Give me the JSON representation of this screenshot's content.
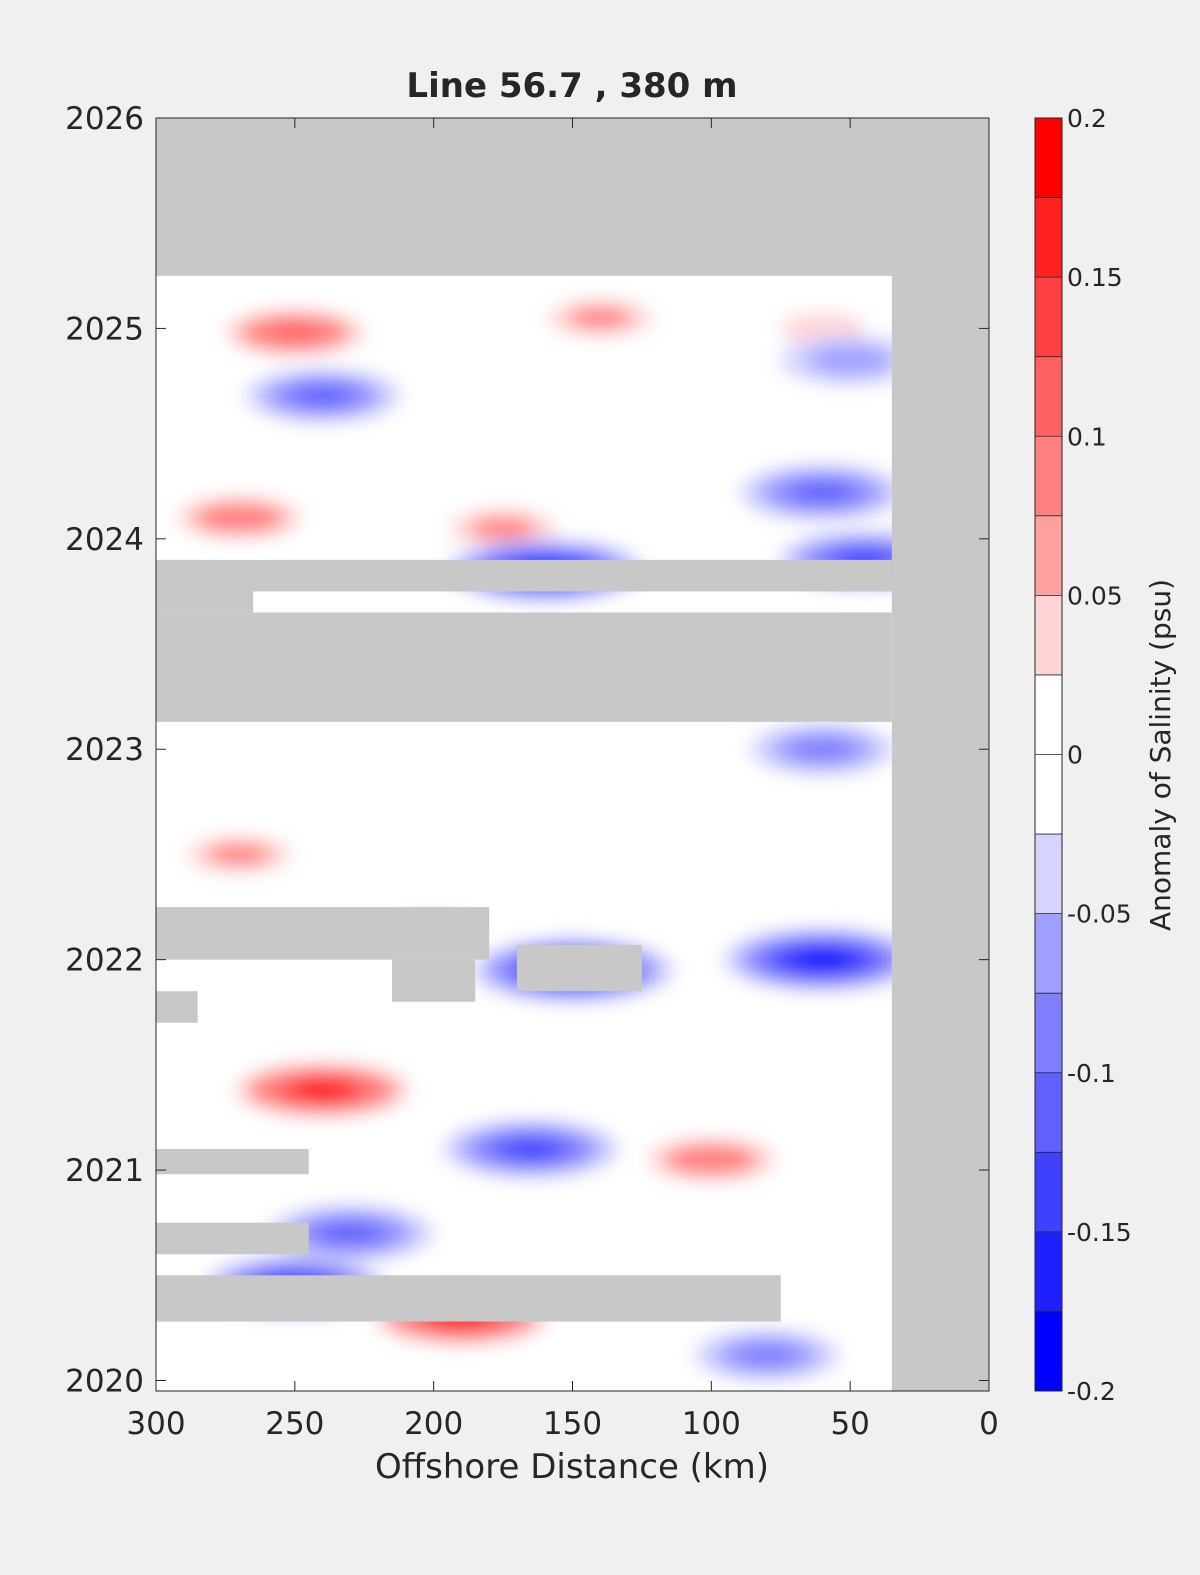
{
  "chart_data": {
    "type": "heatmap",
    "subtype": "filled contour (Hovmoller)",
    "title": "Line 56.7 , 380 m",
    "xlabel": "Offshore Distance (km)",
    "ylabel": "",
    "xlim": [
      300,
      0
    ],
    "x_reversed": true,
    "ylim": [
      2019.95,
      2026.0
    ],
    "x_ticks": [
      300,
      250,
      200,
      150,
      100,
      50,
      0
    ],
    "y_ticks": [
      2020,
      2021,
      2022,
      2023,
      2024,
      2025,
      2026
    ],
    "colorbar": {
      "label": "Anomaly of Salinity (psu)",
      "levels": [
        -0.2,
        -0.175,
        -0.15,
        -0.125,
        -0.1,
        -0.075,
        -0.05,
        -0.025,
        0,
        0.025,
        0.05,
        0.075,
        0.1,
        0.125,
        0.15,
        0.175,
        0.2
      ],
      "tick_values": [
        0.2,
        0.15,
        0.1,
        0.05,
        0,
        -0.05,
        -0.1,
        -0.15,
        -0.2
      ],
      "tick_labels": [
        "0.2",
        "0.15",
        "0.1",
        "0.05",
        "0",
        "-0.05",
        "-0.1",
        "-0.15",
        "-0.2"
      ],
      "colors": [
        "#0000ff",
        "#2020ff",
        "#4040ff",
        "#6060ff",
        "#8080ff",
        "#a0a0ff",
        "#d4d4ff",
        "#ffffff",
        "#ffffff",
        "#ffd4d4",
        "#ffa0a0",
        "#ff8080",
        "#ff6060",
        "#ff4040",
        "#ff2020",
        "#ff0000"
      ]
    },
    "no_data_color": "#c8c8c8",
    "data_extent": {
      "x_min": 35,
      "x_max": 300,
      "y_min": 2019.95,
      "y_max": 2025.25
    },
    "no_data_bands": [
      {
        "x": [
          0,
          300
        ],
        "y": [
          2025.25,
          2026.0
        ]
      },
      {
        "x": [
          0,
          35
        ],
        "y": [
          2019.95,
          2026.0
        ]
      },
      {
        "x": [
          35,
          300
        ],
        "y": [
          2023.13,
          2023.65
        ]
      },
      {
        "x": [
          265,
          300
        ],
        "y": [
          2023.65,
          2023.85
        ]
      },
      {
        "x": [
          35,
          300
        ],
        "y": [
          2023.75,
          2023.9
        ]
      },
      {
        "x": [
          180,
          300
        ],
        "y": [
          2022.0,
          2022.25
        ]
      },
      {
        "x": [
          285,
          300
        ],
        "y": [
          2021.7,
          2021.85
        ]
      },
      {
        "x": [
          185,
          215
        ],
        "y": [
          2021.8,
          2022.0
        ]
      },
      {
        "x": [
          125,
          170
        ],
        "y": [
          2021.85,
          2022.07
        ]
      },
      {
        "x": [
          245,
          300
        ],
        "y": [
          2020.98,
          2021.1
        ]
      },
      {
        "x": [
          245,
          300
        ],
        "y": [
          2020.6,
          2020.75
        ]
      },
      {
        "x": [
          75,
          300
        ],
        "y": [
          2020.28,
          2020.5
        ]
      }
    ],
    "anomaly_features": [
      {
        "x": 250,
        "y": 2024.98,
        "value": 0.12
      },
      {
        "x": 140,
        "y": 2025.05,
        "value": 0.07
      },
      {
        "x": 60,
        "y": 2025.0,
        "value": 0.06
      },
      {
        "x": 240,
        "y": 2024.68,
        "value": -0.09
      },
      {
        "x": 50,
        "y": 2024.85,
        "value": -0.06
      },
      {
        "x": 270,
        "y": 2024.1,
        "value": 0.1
      },
      {
        "x": 175,
        "y": 2024.05,
        "value": 0.08
      },
      {
        "x": 160,
        "y": 2023.85,
        "value": -0.17
      },
      {
        "x": 60,
        "y": 2024.22,
        "value": -0.11
      },
      {
        "x": 45,
        "y": 2023.9,
        "value": -0.12
      },
      {
        "x": 60,
        "y": 2023.0,
        "value": -0.07
      },
      {
        "x": 270,
        "y": 2022.5,
        "value": 0.07
      },
      {
        "x": 200,
        "y": 2022.15,
        "value": 0.06
      },
      {
        "x": 150,
        "y": 2021.95,
        "value": -0.18
      },
      {
        "x": 60,
        "y": 2022.0,
        "value": -0.17
      },
      {
        "x": 240,
        "y": 2021.38,
        "value": 0.18
      },
      {
        "x": 165,
        "y": 2021.1,
        "value": -0.13
      },
      {
        "x": 100,
        "y": 2021.05,
        "value": 0.11
      },
      {
        "x": 230,
        "y": 2020.7,
        "value": -0.11
      },
      {
        "x": 190,
        "y": 2020.3,
        "value": 0.18
      },
      {
        "x": 250,
        "y": 2020.45,
        "value": -0.14
      },
      {
        "x": 80,
        "y": 2020.12,
        "value": -0.07
      }
    ]
  }
}
